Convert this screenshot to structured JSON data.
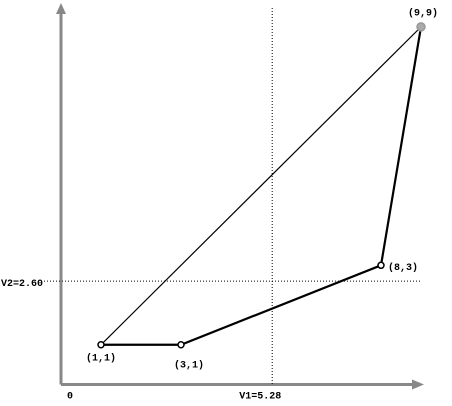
{
  "chart_data": {
    "type": "line",
    "x": [
      1,
      3,
      8,
      9
    ],
    "values": [
      1,
      1,
      3,
      9
    ],
    "point_labels": [
      "(1,1)",
      "(3,1)",
      "(8,3)",
      "(9,9)"
    ],
    "xlim": [
      0,
      9
    ],
    "ylim": [
      0,
      9.5
    ],
    "origin_label": "0",
    "vline": {
      "value": 5.28,
      "label": "V1=5.28"
    },
    "hline": {
      "value": 2.6,
      "label": "V2=2.60"
    },
    "color": "#000000",
    "axis_color": "#888888"
  }
}
